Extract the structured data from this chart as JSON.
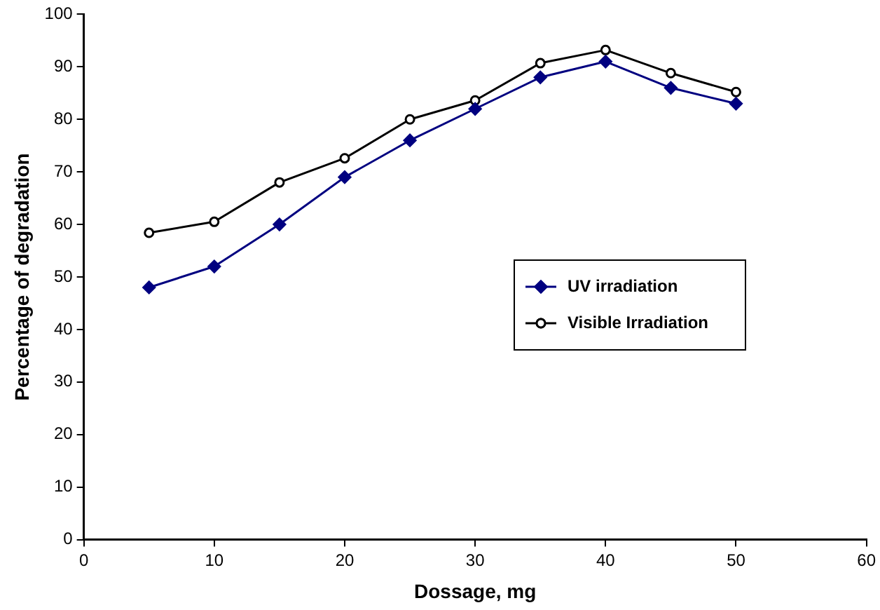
{
  "chart_data": {
    "type": "line",
    "xlabel": "Dossage, mg",
    "ylabel": "Percentage of degradation",
    "x": [
      5,
      10,
      15,
      20,
      25,
      30,
      35,
      40,
      45,
      50
    ],
    "series": [
      {
        "name": "UV irradiation",
        "color": "#000080",
        "marker": "diamond",
        "values": [
          48,
          52,
          60,
          69,
          76,
          82,
          88,
          91,
          86,
          83
        ]
      },
      {
        "name": "Visible Irradiation",
        "color": "#000000",
        "marker": "circle",
        "values": [
          58.4,
          60.5,
          68,
          72.6,
          80,
          83.6,
          90.7,
          93.2,
          88.8,
          85.2
        ]
      }
    ],
    "xlim": [
      0,
      60
    ],
    "xticks": [
      0,
      10,
      20,
      30,
      40,
      50,
      60
    ],
    "ylim": [
      0,
      100
    ],
    "yticks": [
      0,
      10,
      20,
      30,
      40,
      50,
      60,
      70,
      80,
      90,
      100
    ],
    "grid": false,
    "legend": "right"
  }
}
